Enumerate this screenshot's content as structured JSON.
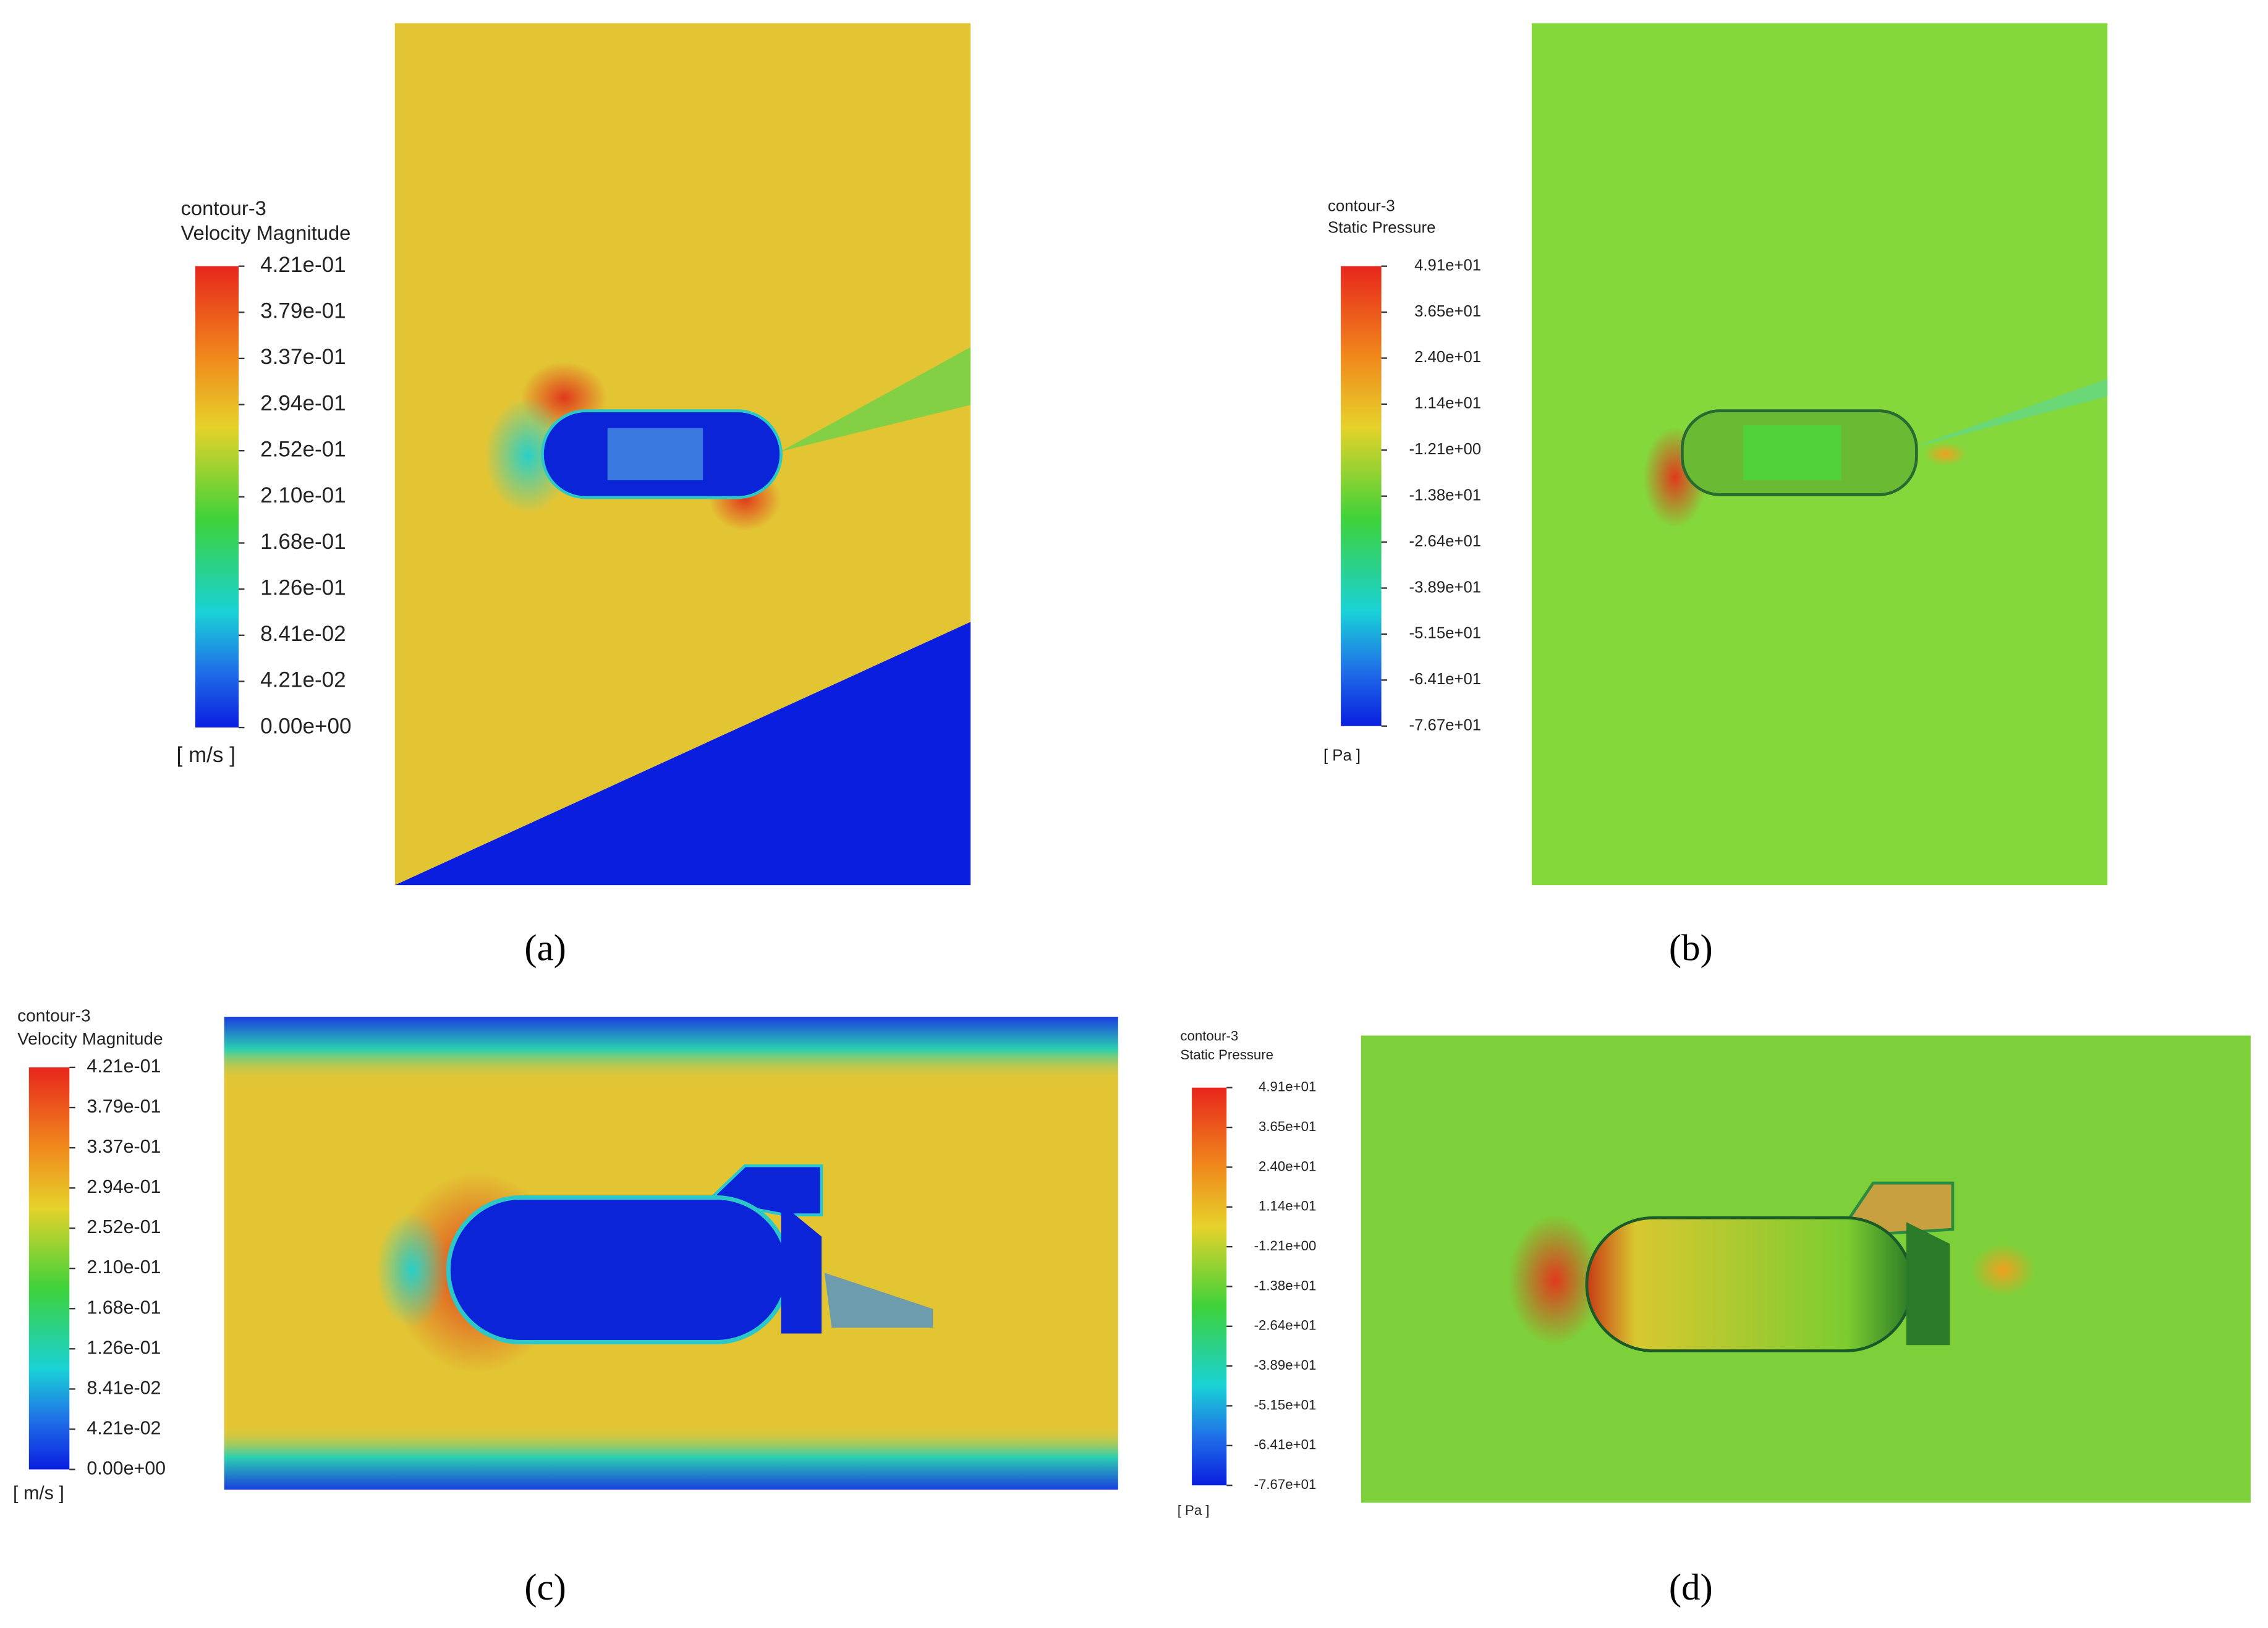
{
  "panels": [
    {
      "legend": {
        "title": "contour-3",
        "quantity": "Velocity Magnitude",
        "ticks": [
          "4.21e-01",
          "3.79e-01",
          "3.37e-01",
          "2.94e-01",
          "2.52e-01",
          "2.10e-01",
          "1.68e-01",
          "1.26e-01",
          "8.41e-02",
          "4.21e-02",
          "0.00e+00"
        ],
        "unit": "[ m/s ]"
      },
      "caption": "(a)"
    },
    {
      "legend": {
        "title": "contour-3",
        "quantity": "Static Pressure",
        "ticks": [
          "4.91e+01",
          "3.65e+01",
          "2.40e+01",
          "1.14e+01",
          "-1.21e+00",
          "-1.38e+01",
          "-2.64e+01",
          "-3.89e+01",
          "-5.15e+01",
          "-6.41e+01",
          "-7.67e+01"
        ],
        "unit": "[ Pa ]"
      },
      "caption": "(b)"
    },
    {
      "legend": {
        "title": "contour-3",
        "quantity": "Velocity Magnitude",
        "ticks": [
          "4.21e-01",
          "3.79e-01",
          "3.37e-01",
          "2.94e-01",
          "2.52e-01",
          "2.10e-01",
          "1.68e-01",
          "1.26e-01",
          "8.41e-02",
          "4.21e-02",
          "0.00e+00"
        ],
        "unit": "[ m/s ]"
      },
      "caption": "(c)"
    },
    {
      "legend": {
        "title": "contour-3",
        "quantity": "Static Pressure",
        "ticks": [
          "4.91e+01",
          "3.65e+01",
          "2.40e+01",
          "1.14e+01",
          "-1.21e+00",
          "-1.38e+01",
          "-2.64e+01",
          "-3.89e+01",
          "-5.15e+01",
          "-6.41e+01",
          "-7.67e+01"
        ],
        "unit": "[ Pa ]"
      },
      "caption": "(d)"
    }
  ]
}
